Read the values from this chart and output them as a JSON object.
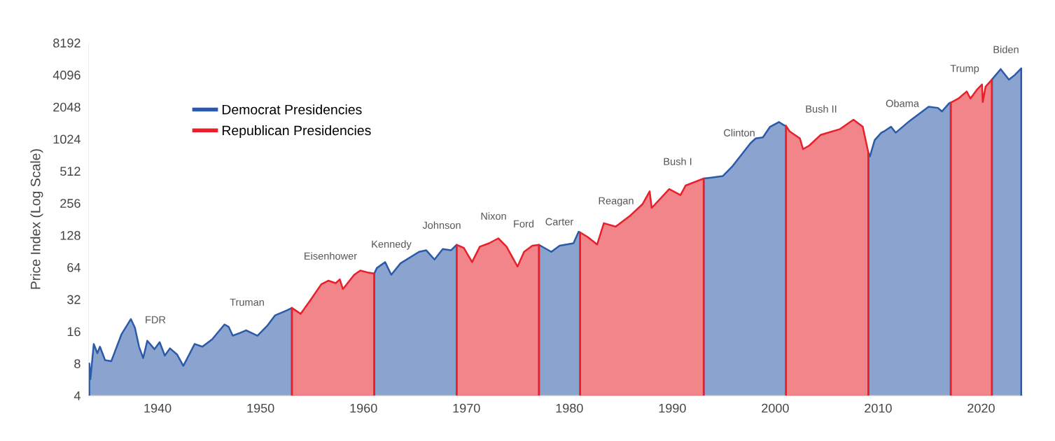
{
  "chart_data": {
    "type": "area",
    "ylabel": "Price Index (Log Scale)",
    "log": "y",
    "grid": false,
    "legend": "top left",
    "xlim": [
      1933.3,
      2024
    ],
    "xticks": [
      1940,
      1950,
      1960,
      1970,
      1980,
      1990,
      2000,
      2010,
      2020
    ],
    "ylim": [
      4,
      8192
    ],
    "yticks": [
      4,
      8,
      16,
      32,
      64,
      128,
      256,
      512,
      1024,
      2048,
      4096,
      8192
    ],
    "series": [
      {
        "name": "Democrat Presidencies",
        "color": "#2a5aa8",
        "x": [
          1933.37,
          1933.47,
          1933.8,
          1934.15,
          1934.4,
          1934.9,
          1935.5,
          1936.5,
          1937.4,
          1937.8,
          1938.2,
          1938.6,
          1939.0,
          1939.7,
          1940.2,
          1940.7,
          1941.2,
          1941.9,
          1942.5,
          1943.6,
          1944.35,
          1945.3,
          1946.5,
          1946.9,
          1947.3,
          1948.0,
          1948.6,
          1949.7,
          1950.7,
          1951.4,
          1952.6,
          1953.05,
          1957,
          1961.05,
          1961.3,
          1962.1,
          1962.7,
          1963.6,
          1965.4,
          1966.1,
          1966.9,
          1967.7,
          1968.5,
          1969.05,
          1973,
          1977.05,
          1978.25,
          1979.05,
          1980.4,
          1980.9,
          1981.05,
          1987,
          1993.05,
          1994.9,
          1995.8,
          1997.6,
          1998.1,
          1998.8,
          1999.5,
          2000.36,
          2000.9,
          2001.05,
          2005,
          2009.05,
          2009.2,
          2009.66,
          2010.3,
          2010.56,
          2011.25,
          2011.7,
          2013.06,
          2014.9,
          2015.8,
          2016.2,
          2016.9,
          2017.05,
          2019,
          2021.05,
          2021.9,
          2022.7,
          2023.27,
          2023.9
        ],
        "values": [
          8,
          5.7,
          12.2,
          10,
          11.5,
          8.6,
          8.4,
          15.1,
          20.9,
          17.3,
          11.5,
          9,
          13.1,
          10.9,
          12.7,
          9.5,
          11.1,
          9.7,
          7.6,
          12.2,
          11.5,
          13.5,
          18.6,
          17.7,
          14.6,
          15.5,
          16.4,
          14.6,
          18.3,
          22.6,
          25.3,
          26.6,
          null,
          56,
          63,
          71.6,
          54.5,
          69.8,
          89.4,
          92.4,
          75.7,
          95,
          92.4,
          104,
          null,
          104,
          89.4,
          102,
          107.6,
          138,
          136,
          null,
          436,
          459,
          562,
          936,
          1036,
          1060,
          1335,
          1478,
          1370,
          1360,
          null,
          760,
          704,
          1000,
          1173,
          1206,
          1335,
          1173,
          1516,
          2056,
          2006,
          1858,
          2219,
          2250,
          null,
          3700,
          4640,
          3692,
          4085,
          4710
        ]
      },
      {
        "name": "Republican Presidencies",
        "color": "#e8202a",
        "x": [
          1953.05,
          1953.9,
          1954.8,
          1955.9,
          1956.6,
          1957.3,
          1957.7,
          1958.0,
          1959.1,
          1959.7,
          1960.4,
          1961.05,
          1965,
          1969.05,
          1969.75,
          1970.55,
          1971.3,
          1972.2,
          1973.1,
          1973.9,
          1974.97,
          1975.6,
          1976.4,
          1977.05,
          1979,
          1981.05,
          1981.8,
          1982.7,
          1983.35,
          1984.5,
          1985.85,
          1987.1,
          1987.8,
          1988.0,
          1989.7,
          1990.8,
          1991.3,
          1993.05,
          1997,
          2001.05,
          2001.4,
          2002.4,
          2002.7,
          2003.3,
          2004.4,
          2006.3,
          2007.6,
          2008.5,
          2009.05,
          2013,
          2017.05,
          2017.8,
          2018.6,
          2018.96,
          2019.64,
          2020.09,
          2020.16,
          2020.43,
          2021.05
        ],
        "values": [
          26.6,
          23.4,
          31,
          44.3,
          47.9,
          45.4,
          49.3,
          40,
          54.5,
          59.6,
          57.3,
          56,
          null,
          104,
          97.4,
          71.6,
          100,
          107.6,
          119.6,
          100,
          65,
          89.4,
          102,
          104,
          null,
          136,
          122.8,
          104.8,
          166,
          154,
          193,
          250,
          330,
          231,
          347,
          305,
          375,
          436,
          null,
          1360,
          1206,
          1036,
          823,
          888,
          1117,
          1270,
          1555,
          1335,
          760,
          null,
          2250,
          2457,
          2862,
          2457,
          3010,
          3333,
          2277,
          3170,
          3700
        ]
      }
    ],
    "annotations": [
      "FDR",
      "Truman",
      "Eisenhower",
      "Kennedy",
      "Johnson",
      "Nixon",
      "Ford",
      "Carter",
      "Reagan",
      "Bush I",
      "Clinton",
      "Bush II",
      "Obama",
      "Trump",
      "Biden"
    ]
  }
}
